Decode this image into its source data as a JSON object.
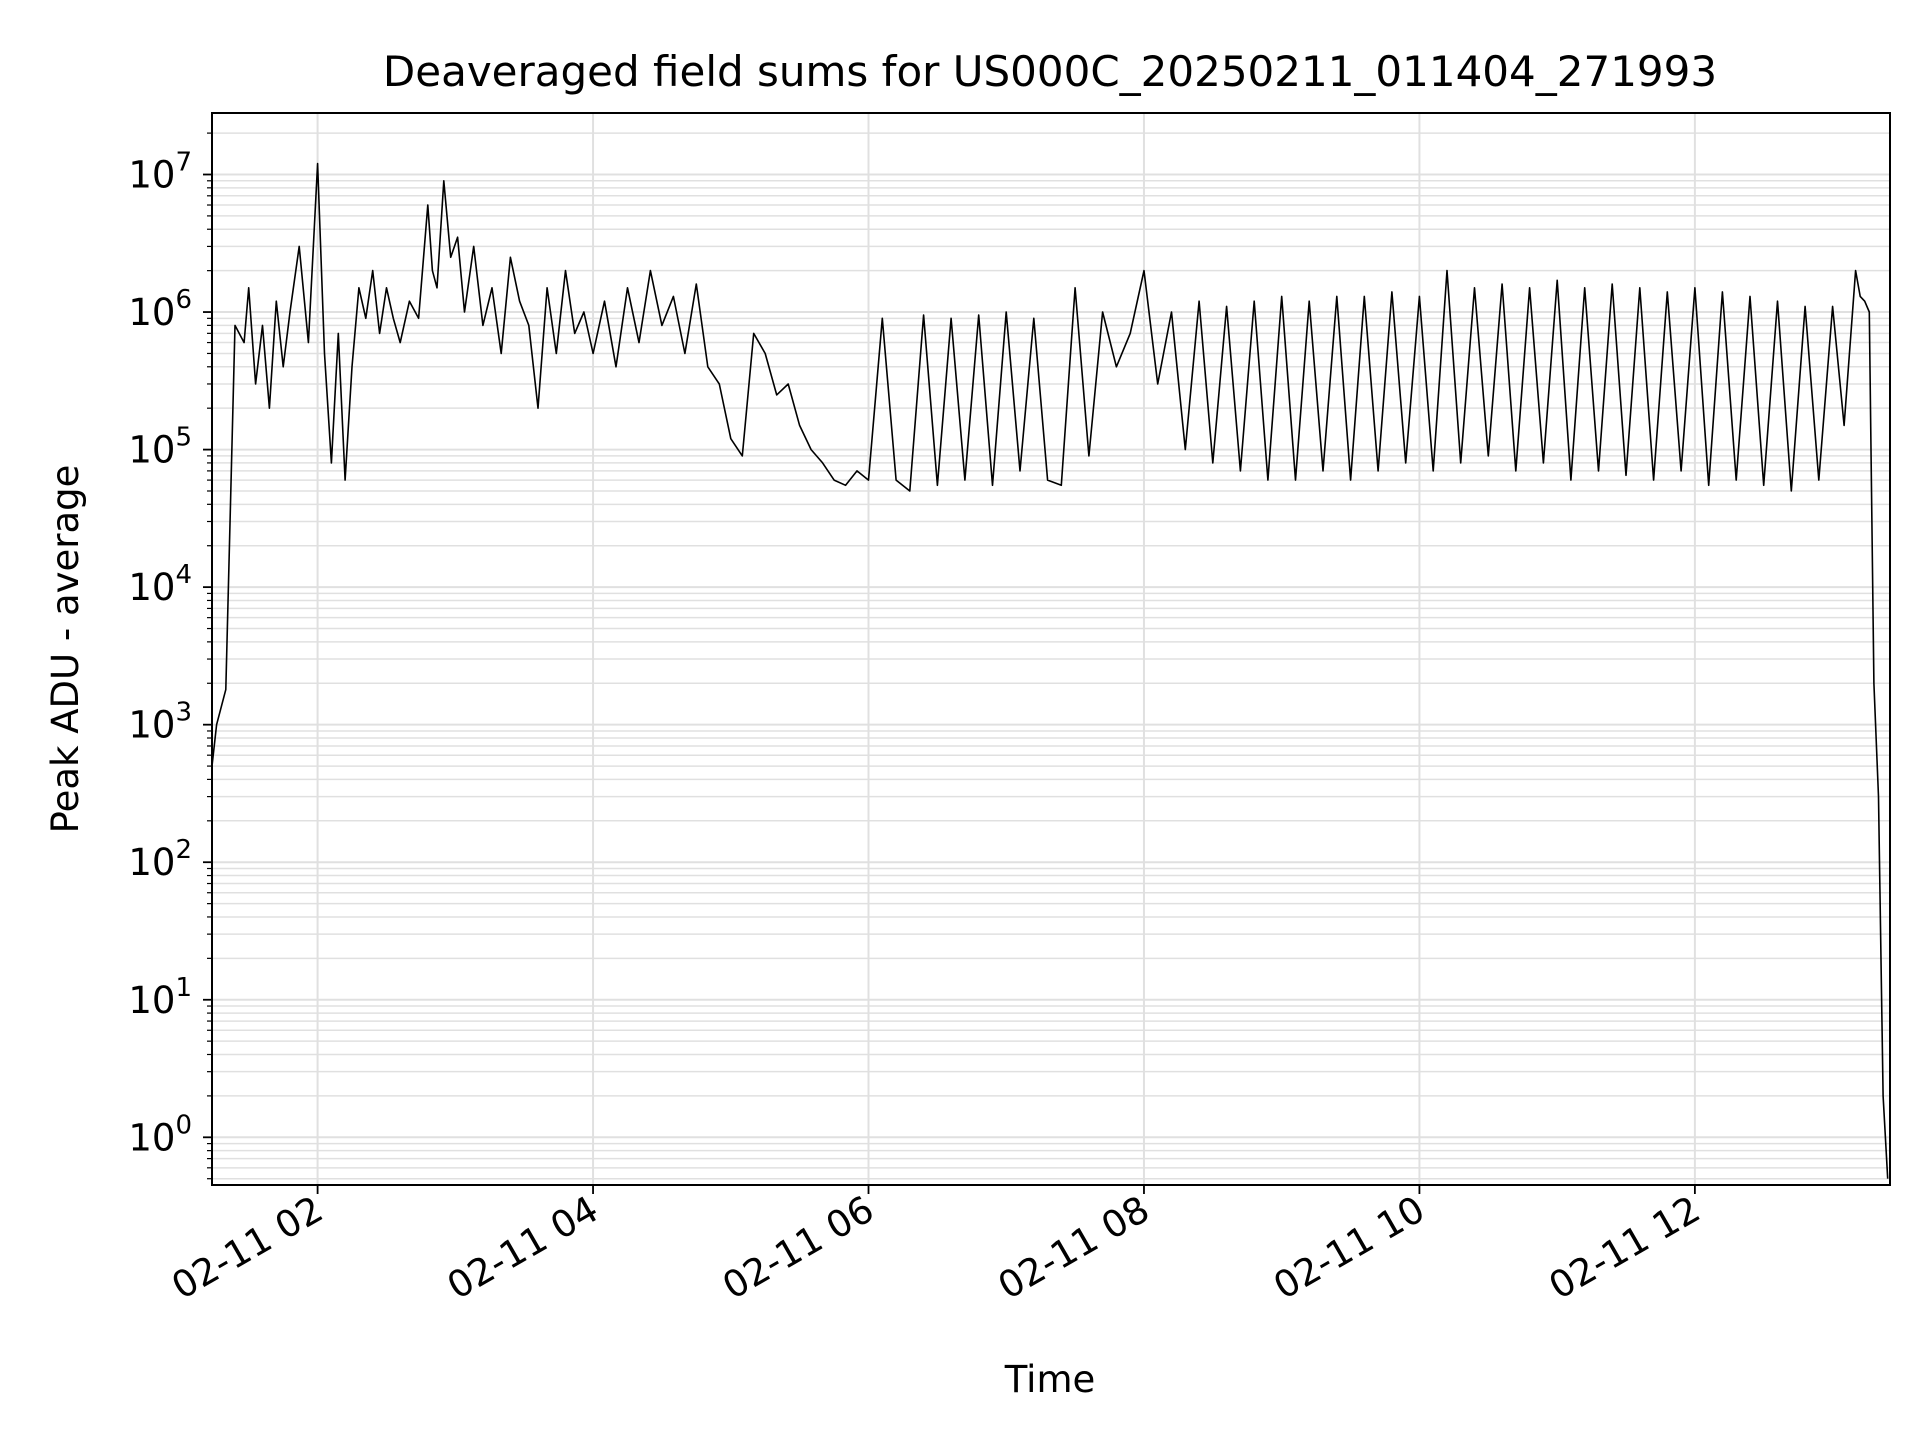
{
  "chart_data": {
    "type": "line",
    "title": "Deaveraged field sums for US000C_20250211_011404_271993",
    "xlabel": "Time",
    "ylabel": "Peak ADU - average",
    "y_scale": "log",
    "ylim": [
      0.45,
      28000000
    ],
    "xlim": [
      "2025-02-11 01:14",
      "2025-02-11 13:25"
    ],
    "grid": true,
    "line_color": "#000000",
    "grid_color": "#e0e0e0",
    "x_ticks": [
      "02-11 02",
      "02-11 04",
      "02-11 06",
      "02-11 08",
      "02-11 10",
      "02-11 12"
    ],
    "y_ticks": [
      {
        "base": "10",
        "exp": "0"
      },
      {
        "base": "10",
        "exp": "1"
      },
      {
        "base": "10",
        "exp": "2"
      },
      {
        "base": "10",
        "exp": "3"
      },
      {
        "base": "10",
        "exp": "4"
      },
      {
        "base": "10",
        "exp": "5"
      },
      {
        "base": "10",
        "exp": "6"
      },
      {
        "base": "10",
        "exp": "7"
      }
    ],
    "x": [
      "2025-02-11 01:14",
      "2025-02-11 01:16",
      "2025-02-11 01:20",
      "2025-02-11 01:24",
      "2025-02-11 01:28",
      "2025-02-11 01:30",
      "2025-02-11 01:33",
      "2025-02-11 01:36",
      "2025-02-11 01:39",
      "2025-02-11 01:42",
      "2025-02-11 01:45",
      "2025-02-11 01:48",
      "2025-02-11 01:52",
      "2025-02-11 01:56",
      "2025-02-11 02:00",
      "2025-02-11 02:03",
      "2025-02-11 02:06",
      "2025-02-11 02:09",
      "2025-02-11 02:12",
      "2025-02-11 02:15",
      "2025-02-11 02:18",
      "2025-02-11 02:21",
      "2025-02-11 02:24",
      "2025-02-11 02:27",
      "2025-02-11 02:30",
      "2025-02-11 02:33",
      "2025-02-11 02:36",
      "2025-02-11 02:40",
      "2025-02-11 02:44",
      "2025-02-11 02:48",
      "2025-02-11 02:50",
      "2025-02-11 02:52",
      "2025-02-11 02:55",
      "2025-02-11 02:58",
      "2025-02-11 03:01",
      "2025-02-11 03:04",
      "2025-02-11 03:08",
      "2025-02-11 03:12",
      "2025-02-11 03:16",
      "2025-02-11 03:20",
      "2025-02-11 03:24",
      "2025-02-11 03:28",
      "2025-02-11 03:32",
      "2025-02-11 03:36",
      "2025-02-11 03:40",
      "2025-02-11 03:44",
      "2025-02-11 03:48",
      "2025-02-11 03:52",
      "2025-02-11 03:56",
      "2025-02-11 04:00",
      "2025-02-11 04:05",
      "2025-02-11 04:10",
      "2025-02-11 04:15",
      "2025-02-11 04:20",
      "2025-02-11 04:25",
      "2025-02-11 04:30",
      "2025-02-11 04:35",
      "2025-02-11 04:40",
      "2025-02-11 04:45",
      "2025-02-11 04:50",
      "2025-02-11 04:55",
      "2025-02-11 05:00",
      "2025-02-11 05:05",
      "2025-02-11 05:10",
      "2025-02-11 05:15",
      "2025-02-11 05:20",
      "2025-02-11 05:25",
      "2025-02-11 05:30",
      "2025-02-11 05:35",
      "2025-02-11 05:40",
      "2025-02-11 05:45",
      "2025-02-11 05:50",
      "2025-02-11 05:55",
      "2025-02-11 06:00",
      "2025-02-11 06:06",
      "2025-02-11 06:12",
      "2025-02-11 06:18",
      "2025-02-11 06:24",
      "2025-02-11 06:30",
      "2025-02-11 06:36",
      "2025-02-11 06:42",
      "2025-02-11 06:48",
      "2025-02-11 06:54",
      "2025-02-11 07:00",
      "2025-02-11 07:06",
      "2025-02-11 07:12",
      "2025-02-11 07:18",
      "2025-02-11 07:24",
      "2025-02-11 07:30",
      "2025-02-11 07:36",
      "2025-02-11 07:42",
      "2025-02-11 07:48",
      "2025-02-11 07:54",
      "2025-02-11 08:00",
      "2025-02-11 08:06",
      "2025-02-11 08:12",
      "2025-02-11 08:18",
      "2025-02-11 08:24",
      "2025-02-11 08:30",
      "2025-02-11 08:36",
      "2025-02-11 08:42",
      "2025-02-11 08:48",
      "2025-02-11 08:54",
      "2025-02-11 09:00",
      "2025-02-11 09:06",
      "2025-02-11 09:12",
      "2025-02-11 09:18",
      "2025-02-11 09:24",
      "2025-02-11 09:30",
      "2025-02-11 09:36",
      "2025-02-11 09:42",
      "2025-02-11 09:48",
      "2025-02-11 09:54",
      "2025-02-11 10:00",
      "2025-02-11 10:06",
      "2025-02-11 10:12",
      "2025-02-11 10:18",
      "2025-02-11 10:24",
      "2025-02-11 10:30",
      "2025-02-11 10:36",
      "2025-02-11 10:42",
      "2025-02-11 10:48",
      "2025-02-11 10:54",
      "2025-02-11 11:00",
      "2025-02-11 11:06",
      "2025-02-11 11:12",
      "2025-02-11 11:18",
      "2025-02-11 11:24",
      "2025-02-11 11:30",
      "2025-02-11 11:36",
      "2025-02-11 11:42",
      "2025-02-11 11:48",
      "2025-02-11 11:54",
      "2025-02-11 12:00",
      "2025-02-11 12:06",
      "2025-02-11 12:12",
      "2025-02-11 12:18",
      "2025-02-11 12:24",
      "2025-02-11 12:30",
      "2025-02-11 12:36",
      "2025-02-11 12:42",
      "2025-02-11 12:48",
      "2025-02-11 12:54",
      "2025-02-11 13:00",
      "2025-02-11 13:05",
      "2025-02-11 13:10",
      "2025-02-11 13:12",
      "2025-02-11 13:14",
      "2025-02-11 13:16",
      "2025-02-11 13:18",
      "2025-02-11 13:20",
      "2025-02-11 13:22",
      "2025-02-11 13:24"
    ],
    "values": [
      500,
      1000,
      1800,
      800000,
      600000,
      1500000,
      300000,
      800000,
      200000,
      1200000,
      400000,
      1000000,
      3000000,
      600000,
      12000000,
      500000,
      80000,
      700000,
      60000,
      400000,
      1500000,
      900000,
      2000000,
      700000,
      1500000,
      900000,
      600000,
      1200000,
      900000,
      6000000,
      2000000,
      1500000,
      9000000,
      2500000,
      3500000,
      1000000,
      3000000,
      800000,
      1500000,
      500000,
      2500000,
      1200000,
      800000,
      200000,
      1500000,
      500000,
      2000000,
      700000,
      1000000,
      500000,
      1200000,
      400000,
      1500000,
      600000,
      2000000,
      800000,
      1300000,
      500000,
      1600000,
      400000,
      300000,
      120000,
      90000,
      700000,
      500000,
      250000,
      300000,
      150000,
      100000,
      80000,
      60000,
      55000,
      70000,
      60000,
      900000,
      60000,
      50000,
      950000,
      55000,
      900000,
      60000,
      950000,
      55000,
      1000000,
      70000,
      900000,
      60000,
      55000,
      1500000,
      90000,
      1000000,
      400000,
      700000,
      2000000,
      300000,
      1000000,
      100000,
      1200000,
      80000,
      1100000,
      70000,
      1200000,
      60000,
      1300000,
      60000,
      1200000,
      70000,
      1300000,
      60000,
      1300000,
      70000,
      1400000,
      80000,
      1300000,
      70000,
      2000000,
      80000,
      1500000,
      90000,
      1600000,
      70000,
      1500000,
      80000,
      1700000,
      60000,
      1500000,
      70000,
      1600000,
      65000,
      1500000,
      60000,
      1400000,
      70000,
      1500000,
      55000,
      1400000,
      60000,
      1300000,
      55000,
      1200000,
      50000,
      1100000,
      60000,
      1100000,
      150000,
      2000000,
      1300000,
      1200000,
      1000000,
      2000,
      300,
      2,
      0.5
    ]
  }
}
